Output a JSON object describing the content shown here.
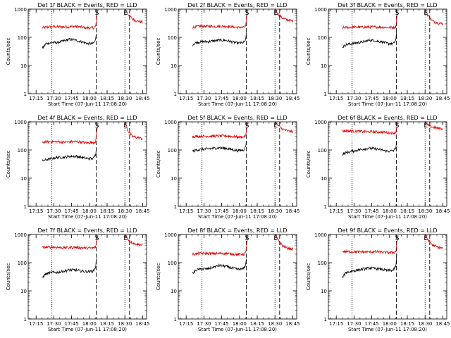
{
  "figure": {
    "colors": {
      "events": "#000000",
      "lld": "#dd0000",
      "axis": "#000000",
      "background": "#ffffff"
    }
  },
  "chart_data": [
    {
      "type": "line",
      "title": "Det 1f BLACK = Events, RED = LLD",
      "xlabel": "Start Time (07-Jun-11 17:08:20)",
      "ylabel": "Counts/sec",
      "x_tick_labels": [
        "17:15",
        "17:30",
        "17:45",
        "18:00",
        "18:15",
        "18:30",
        "18:45"
      ],
      "x_tick_minutes": [
        6.67,
        21.67,
        36.67,
        51.67,
        66.67,
        81.67,
        96.67
      ],
      "y_scale": "log",
      "ylim": [
        1,
        1000
      ],
      "y_tick_labels": [
        "1",
        "10",
        "100",
        "1000"
      ],
      "xlim_minutes": [
        0,
        100
      ],
      "markers": [
        {
          "label": "S",
          "minute": 57.5
        },
        {
          "label": "E",
          "minute": 81.7
        }
      ],
      "dotted_lines_minutes": [
        20.0,
        81.7
      ],
      "dashed_lines_minutes": [
        57.5,
        85.6
      ],
      "series": [
        {
          "name": "LLD",
          "x": [
            12,
            20,
            30,
            40,
            50,
            55,
            57,
            58,
            59,
            82,
            84,
            88,
            92,
            97
          ],
          "y": [
            220,
            240,
            235,
            245,
            215,
            220,
            240,
            600,
            1000,
            1000,
            700,
            450,
            380,
            350
          ]
        },
        {
          "name": "Events",
          "x": [
            12,
            15,
            20,
            25,
            30,
            35,
            40,
            45,
            50,
            55,
            57,
            57.5
          ],
          "y": [
            40,
            60,
            65,
            65,
            75,
            85,
            80,
            70,
            60,
            60,
            80,
            140
          ]
        }
      ]
    },
    {
      "type": "line",
      "title": "Det 2f BLACK = Events, RED = LLD",
      "xlabel": "Start Time (07-Jun-11 17:08:20)",
      "ylabel": "Counts/sec",
      "x_tick_labels": [
        "17:15",
        "17:30",
        "17:45",
        "18:00",
        "18:15",
        "18:30",
        "18:45"
      ],
      "x_tick_minutes": [
        6.67,
        21.67,
        36.67,
        51.67,
        66.67,
        81.67,
        96.67
      ],
      "y_scale": "log",
      "ylim": [
        1,
        1000
      ],
      "y_tick_labels": [
        "1",
        "10",
        "100",
        "1000"
      ],
      "xlim_minutes": [
        0,
        100
      ],
      "markers": [
        {
          "label": "S",
          "minute": 57.5
        },
        {
          "label": "E",
          "minute": 81.7
        }
      ],
      "dotted_lines_minutes": [
        20.0,
        81.7
      ],
      "dashed_lines_minutes": [
        57.5,
        85.6
      ],
      "series": [
        {
          "name": "LLD",
          "x": [
            12,
            20,
            30,
            40,
            50,
            55,
            57,
            58,
            59,
            82,
            84,
            88,
            92,
            97
          ],
          "y": [
            230,
            250,
            245,
            250,
            225,
            225,
            250,
            600,
            1000,
            1000,
            700,
            480,
            420,
            380
          ]
        },
        {
          "name": "Events",
          "x": [
            12,
            15,
            20,
            25,
            30,
            35,
            40,
            45,
            50,
            55,
            57,
            57.5
          ],
          "y": [
            55,
            65,
            70,
            70,
            75,
            80,
            78,
            70,
            62,
            65,
            80,
            140
          ]
        }
      ]
    },
    {
      "type": "line",
      "title": "Det 3f BLACK = Events, RED = LLD",
      "xlabel": "Start Time (07-Jun-11 17:08:20)",
      "ylabel": "Counts/sec",
      "x_tick_labels": [
        "17:15",
        "17:30",
        "17:45",
        "18:00",
        "18:15",
        "18:30",
        "18:45"
      ],
      "x_tick_minutes": [
        6.67,
        21.67,
        36.67,
        51.67,
        66.67,
        81.67,
        96.67
      ],
      "y_scale": "log",
      "ylim": [
        1,
        1000
      ],
      "y_tick_labels": [
        "1",
        "10",
        "100",
        "1000"
      ],
      "xlim_minutes": [
        0,
        100
      ],
      "markers": [
        {
          "label": "S",
          "minute": 57.5
        },
        {
          "label": "E",
          "minute": 81.7
        }
      ],
      "dotted_lines_minutes": [
        20.0,
        81.7
      ],
      "dashed_lines_minutes": [
        57.5,
        85.6
      ],
      "series": [
        {
          "name": "LLD",
          "x": [
            12,
            20,
            30,
            40,
            50,
            55,
            57,
            58,
            59,
            82,
            84,
            88,
            92,
            97
          ],
          "y": [
            220,
            230,
            230,
            235,
            225,
            225,
            240,
            600,
            1000,
            1000,
            600,
            380,
            330,
            300
          ]
        },
        {
          "name": "Events",
          "x": [
            12,
            15,
            20,
            25,
            30,
            35,
            40,
            45,
            50,
            55,
            57,
            57.5
          ],
          "y": [
            45,
            55,
            60,
            65,
            70,
            80,
            75,
            70,
            60,
            60,
            80,
            140
          ]
        }
      ]
    },
    {
      "type": "line",
      "title": "Det 4f BLACK = Events, RED = LLD",
      "xlabel": "Start Time (07-Jun-11 17:08:20)",
      "ylabel": "Counts/sec",
      "x_tick_labels": [
        "17:15",
        "17:30",
        "17:45",
        "18:00",
        "18:15",
        "18:30",
        "18:45"
      ],
      "x_tick_minutes": [
        6.67,
        21.67,
        36.67,
        51.67,
        66.67,
        81.67,
        96.67
      ],
      "y_scale": "log",
      "ylim": [
        1,
        1000
      ],
      "y_tick_labels": [
        "1",
        "10",
        "100",
        "1000"
      ],
      "xlim_minutes": [
        0,
        100
      ],
      "markers": [
        {
          "label": "S",
          "minute": 57.5
        },
        {
          "label": "E",
          "minute": 81.7
        }
      ],
      "dotted_lines_minutes": [
        20.0,
        81.7
      ],
      "dashed_lines_minutes": [
        57.5,
        85.6
      ],
      "series": [
        {
          "name": "LLD",
          "x": [
            12,
            20,
            30,
            40,
            50,
            55,
            57,
            58,
            59,
            82,
            84,
            88,
            92,
            97
          ],
          "y": [
            190,
            200,
            190,
            200,
            180,
            185,
            200,
            500,
            1000,
            1000,
            500,
            300,
            280,
            250
          ]
        },
        {
          "name": "Events",
          "x": [
            12,
            15,
            20,
            25,
            30,
            35,
            40,
            45,
            50,
            55,
            57,
            57.5
          ],
          "y": [
            40,
            45,
            50,
            55,
            55,
            60,
            60,
            55,
            50,
            50,
            70,
            120
          ]
        }
      ]
    },
    {
      "type": "line",
      "title": "Det 5f BLACK = Events, RED = LLD",
      "xlabel": "Start Time (07-Jun-11 17:08:20)",
      "ylabel": "Counts/sec",
      "x_tick_labels": [
        "17:15",
        "17:30",
        "17:45",
        "18:00",
        "18:15",
        "18:30",
        "18:45"
      ],
      "x_tick_minutes": [
        6.67,
        21.67,
        36.67,
        51.67,
        66.67,
        81.67,
        96.67
      ],
      "y_scale": "log",
      "ylim": [
        1,
        1000
      ],
      "y_tick_labels": [
        "1",
        "10",
        "100",
        "1000"
      ],
      "xlim_minutes": [
        0,
        100
      ],
      "markers": [
        {
          "label": "S",
          "minute": 57.5
        },
        {
          "label": "E",
          "minute": 81.7
        }
      ],
      "dotted_lines_minutes": [
        20.0,
        81.7
      ],
      "dashed_lines_minutes": [
        57.5,
        85.6
      ],
      "series": [
        {
          "name": "LLD",
          "x": [
            12,
            20,
            30,
            40,
            50,
            55,
            57,
            58,
            59,
            82,
            84,
            88,
            92,
            97
          ],
          "y": [
            300,
            310,
            310,
            320,
            290,
            290,
            320,
            650,
            1000,
            1000,
            750,
            550,
            480,
            440
          ]
        },
        {
          "name": "Events",
          "x": [
            12,
            15,
            20,
            25,
            30,
            35,
            40,
            45,
            50,
            55,
            57,
            57.5
          ],
          "y": [
            90,
            100,
            105,
            110,
            115,
            120,
            115,
            105,
            95,
            100,
            130,
            220
          ]
        }
      ]
    },
    {
      "type": "line",
      "title": "Det 6f BLACK = Events, RED = LLD",
      "xlabel": "Start Time (07-Jun-11 17:08:20)",
      "ylabel": "Counts/sec",
      "x_tick_labels": [
        "17:15",
        "17:30",
        "17:45",
        "18:00",
        "18:15",
        "18:30",
        "18:45"
      ],
      "x_tick_minutes": [
        6.67,
        21.67,
        36.67,
        51.67,
        66.67,
        81.67,
        96.67
      ],
      "y_scale": "log",
      "ylim": [
        1,
        1000
      ],
      "y_tick_labels": [
        "1",
        "10",
        "100",
        "1000"
      ],
      "xlim_minutes": [
        0,
        100
      ],
      "markers": [
        {
          "label": "S",
          "minute": 57.5
        },
        {
          "label": "E",
          "minute": 81.7
        }
      ],
      "dotted_lines_minutes": [
        20.0,
        81.7
      ],
      "dashed_lines_minutes": [
        57.5,
        85.6
      ],
      "series": [
        {
          "name": "LLD",
          "x": [
            12,
            20,
            30,
            40,
            50,
            55,
            57,
            58,
            59,
            82,
            84,
            88,
            92,
            97
          ],
          "y": [
            480,
            470,
            450,
            440,
            420,
            400,
            430,
            800,
            1000,
            1000,
            750,
            650,
            600,
            560
          ]
        },
        {
          "name": "Events",
          "x": [
            12,
            15,
            20,
            25,
            30,
            35,
            40,
            45,
            50,
            55,
            57,
            57.5
          ],
          "y": [
            70,
            80,
            90,
            100,
            110,
            115,
            110,
            100,
            90,
            95,
            120,
            200
          ]
        }
      ]
    },
    {
      "type": "line",
      "title": "Det 7f BLACK = Events, RED = LLD",
      "xlabel": "Start Time (07-Jun-11 17:08:20)",
      "ylabel": "Counts/sec",
      "x_tick_labels": [
        "17:15",
        "17:30",
        "17:45",
        "18:00",
        "18:15",
        "18:30",
        "18:45"
      ],
      "x_tick_minutes": [
        6.67,
        21.67,
        36.67,
        51.67,
        66.67,
        81.67,
        96.67
      ],
      "y_scale": "log",
      "ylim": [
        1,
        1000
      ],
      "y_tick_labels": [
        "1",
        "10",
        "100",
        "1000"
      ],
      "xlim_minutes": [
        0,
        100
      ],
      "markers": [
        {
          "label": "S",
          "minute": 57.5
        },
        {
          "label": "E",
          "minute": 81.7
        }
      ],
      "dotted_lines_minutes": [
        20.0,
        81.7
      ],
      "dashed_lines_minutes": [
        57.5,
        85.6
      ],
      "series": [
        {
          "name": "LLD",
          "x": [
            12,
            20,
            30,
            40,
            50,
            55,
            57,
            58,
            59,
            82,
            84,
            88,
            92,
            97
          ],
          "y": [
            350,
            360,
            340,
            350,
            330,
            330,
            360,
            650,
            1000,
            1000,
            700,
            500,
            450,
            420
          ]
        },
        {
          "name": "Events",
          "x": [
            12,
            15,
            20,
            25,
            30,
            35,
            40,
            45,
            50,
            55,
            57,
            57.5
          ],
          "y": [
            30,
            40,
            45,
            45,
            50,
            55,
            55,
            50,
            48,
            50,
            70,
            130
          ]
        }
      ]
    },
    {
      "type": "line",
      "title": "Det 8f BLACK = Events, RED = LLD",
      "xlabel": "Start Time (07-Jun-11 17:08:20)",
      "ylabel": "Counts/sec",
      "x_tick_labels": [
        "17:15",
        "17:30",
        "17:45",
        "18:00",
        "18:15",
        "18:30",
        "18:45"
      ],
      "x_tick_minutes": [
        6.67,
        21.67,
        36.67,
        51.67,
        66.67,
        81.67,
        96.67
      ],
      "y_scale": "log",
      "ylim": [
        1,
        1000
      ],
      "y_tick_labels": [
        "1",
        "10",
        "100",
        "1000"
      ],
      "xlim_minutes": [
        0,
        100
      ],
      "markers": [
        {
          "label": "S",
          "minute": 57.5
        },
        {
          "label": "E",
          "minute": 81.7
        }
      ],
      "dotted_lines_minutes": [
        20.0,
        81.7
      ],
      "dashed_lines_minutes": [
        57.5,
        85.6
      ],
      "series": [
        {
          "name": "LLD",
          "x": [
            12,
            20,
            30,
            40,
            50,
            55,
            57,
            58,
            59,
            82,
            84,
            88,
            92,
            97
          ],
          "y": [
            200,
            215,
            210,
            215,
            195,
            200,
            220,
            550,
            1000,
            1000,
            650,
            400,
            330,
            300
          ]
        },
        {
          "name": "Events",
          "x": [
            12,
            15,
            20,
            25,
            30,
            35,
            40,
            45,
            50,
            55,
            57,
            57.5
          ],
          "y": [
            40,
            55,
            60,
            60,
            70,
            80,
            75,
            65,
            58,
            60,
            85,
            150
          ]
        }
      ]
    },
    {
      "type": "line",
      "title": "Det 9f BLACK = Events, RED = LLD",
      "xlabel": "Start Time (07-Jun-11 17:08:20)",
      "ylabel": "Counts/sec",
      "x_tick_labels": [
        "17:15",
        "17:30",
        "17:45",
        "18:00",
        "18:15",
        "18:30",
        "18:45"
      ],
      "x_tick_minutes": [
        6.67,
        21.67,
        36.67,
        51.67,
        66.67,
        81.67,
        96.67
      ],
      "y_scale": "log",
      "ylim": [
        1,
        1000
      ],
      "y_tick_labels": [
        "1",
        "10",
        "100",
        "1000"
      ],
      "xlim_minutes": [
        0,
        100
      ],
      "markers": [
        {
          "label": "S",
          "minute": 57.5
        },
        {
          "label": "E",
          "minute": 81.7
        }
      ],
      "dotted_lines_minutes": [
        20.0,
        81.7
      ],
      "dashed_lines_minutes": [
        57.5,
        85.6
      ],
      "series": [
        {
          "name": "LLD",
          "x": [
            12,
            20,
            30,
            40,
            50,
            55,
            57,
            58,
            59,
            82,
            84,
            88,
            92,
            97
          ],
          "y": [
            250,
            245,
            240,
            245,
            230,
            230,
            250,
            600,
            1000,
            1000,
            650,
            420,
            360,
            320
          ]
        },
        {
          "name": "Events",
          "x": [
            12,
            15,
            20,
            25,
            30,
            35,
            40,
            45,
            50,
            55,
            57,
            57.5
          ],
          "y": [
            30,
            45,
            50,
            55,
            60,
            65,
            62,
            58,
            52,
            55,
            75,
            140
          ]
        }
      ]
    }
  ]
}
